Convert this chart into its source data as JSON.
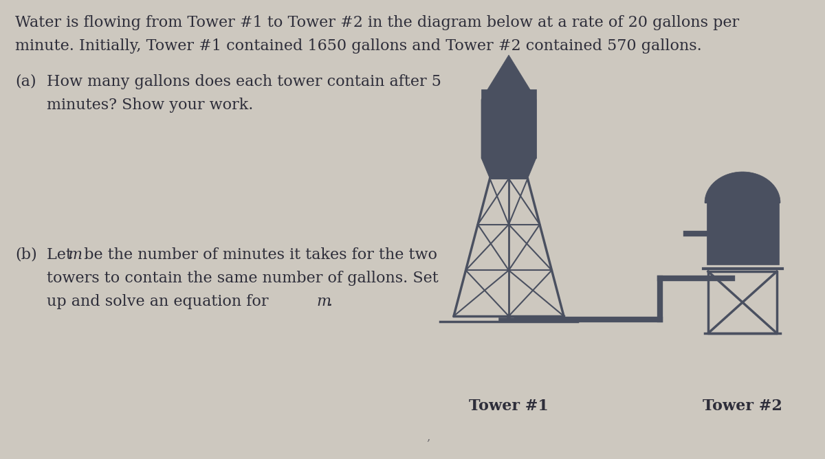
{
  "bg_color": "#cdc8bf",
  "text_color": "#2e2e3a",
  "tower_color": "#4a5060",
  "line1": "Water is flowing from Tower #1 to Tower #2 in the diagram below at a rate of 20 gallons per",
  "line2": "minute. Initially, Tower #1 contained 1650 gallons and Tower #2 contained 570 gallons.",
  "a_label": "(a)",
  "a_line1": "How many gallons does each tower contain after 5",
  "a_line2": "minutes? Show your work.",
  "b_label": "(b)",
  "b_line1_pre": "Let ",
  "b_m": "m",
  "b_line1_post": " be the number of minutes it takes for the two",
  "b_line2": "towers to contain the same number of gallons. Set",
  "b_line3_pre": "up and solve an equation for ",
  "b_line3_m": "m",
  "b_line3_post": ".",
  "label1": "Tower #1",
  "label2": "Tower #2",
  "fontsize": 16
}
